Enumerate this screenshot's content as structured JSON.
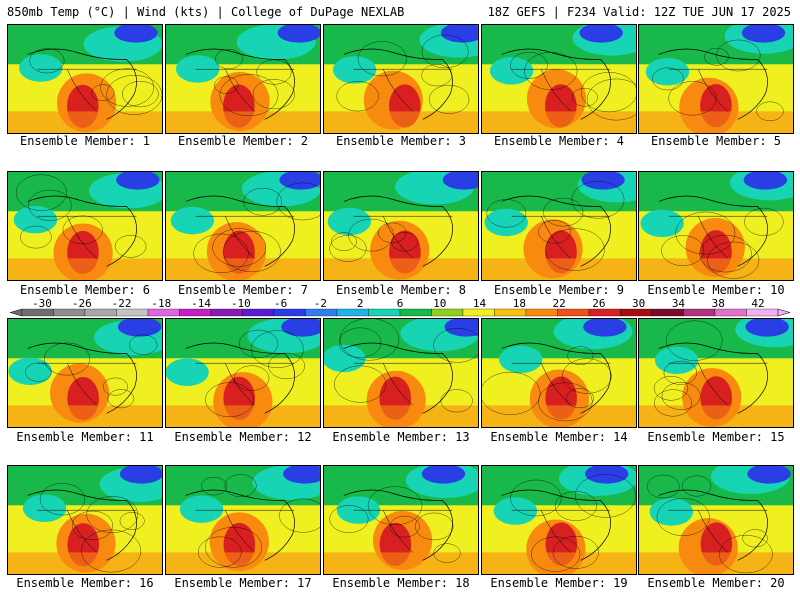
{
  "header": {
    "left": "850mb Temp (°C) | Wind (kts) | College of DuPage NEXLAB",
    "right": "18Z GEFS | F234 Valid: 12Z TUE JUN 17 2025"
  },
  "panels": [
    {
      "label": "Ensemble Member: 1"
    },
    {
      "label": "Ensemble Member: 2"
    },
    {
      "label": "Ensemble Member: 3"
    },
    {
      "label": "Ensemble Member: 4"
    },
    {
      "label": "Ensemble Member: 5"
    },
    {
      "label": "Ensemble Member: 6"
    },
    {
      "label": "Ensemble Member: 7"
    },
    {
      "label": "Ensemble Member: 8"
    },
    {
      "label": "Ensemble Member: 9"
    },
    {
      "label": "Ensemble Member: 10"
    },
    {
      "label": "Ensemble Member: 11"
    },
    {
      "label": "Ensemble Member: 12"
    },
    {
      "label": "Ensemble Member: 13"
    },
    {
      "label": "Ensemble Member: 14"
    },
    {
      "label": "Ensemble Member: 15"
    },
    {
      "label": "Ensemble Member: 16"
    },
    {
      "label": "Ensemble Member: 17"
    },
    {
      "label": "Ensemble Member: 18"
    },
    {
      "label": "Ensemble Member: 19"
    },
    {
      "label": "Ensemble Member: 20"
    }
  ],
  "colorbar": {
    "ticks": [
      "-30",
      "-26",
      "-22",
      "-18",
      "-14",
      "-10",
      "-6",
      "-2",
      "2",
      "6",
      "10",
      "14",
      "18",
      "22",
      "26",
      "30",
      "34",
      "38",
      "42"
    ],
    "colors": [
      "#6e6e6e",
      "#8c8c8c",
      "#a8a8a8",
      "#c4c4c4",
      "#e066e0",
      "#c41ec4",
      "#8a1ab8",
      "#5a1ad6",
      "#2a3ee6",
      "#2f7ff0",
      "#1fb4e8",
      "#17d4b4",
      "#19b84a",
      "#8fd01a",
      "#f0f020",
      "#f8c010",
      "#f88a10",
      "#f0501a",
      "#d82020",
      "#a80c0c",
      "#7a0a2a",
      "#b0327c",
      "#e070c8",
      "#f0b0f0"
    ]
  },
  "map_colors": {
    "cold": "#2a3ee6",
    "cool": "#17d4b4",
    "mild": "#19b84a",
    "warm": "#f0f020",
    "hot": "#f88a10",
    "very_hot": "#d82020"
  }
}
